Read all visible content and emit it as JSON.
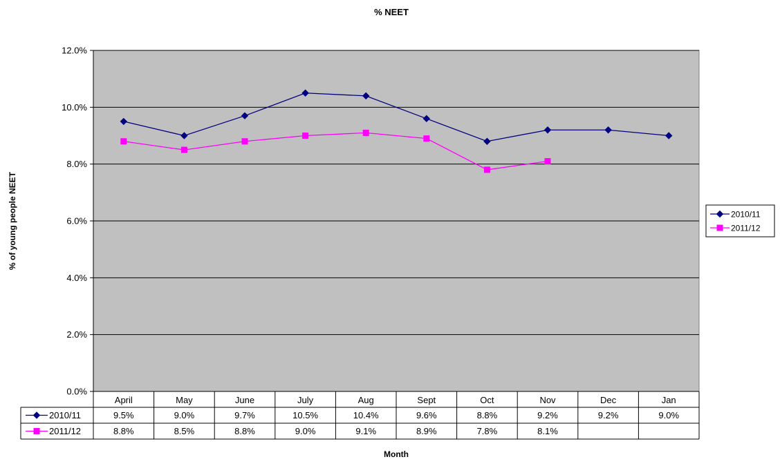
{
  "chart_data": {
    "type": "line",
    "title": "% NEET",
    "xlabel": "Month",
    "ylabel": "% of young people NEET",
    "categories": [
      "April",
      "May",
      "June",
      "July",
      "Aug",
      "Sept",
      "Oct",
      "Nov",
      "Dec",
      "Jan"
    ],
    "series": [
      {
        "name": "2010/11",
        "color": "#000080",
        "marker": "diamond",
        "values": [
          9.5,
          9.0,
          9.7,
          10.5,
          10.4,
          9.6,
          8.8,
          9.2,
          9.2,
          9.0
        ],
        "labels": [
          "9.5%",
          "9.0%",
          "9.7%",
          "10.5%",
          "10.4%",
          "9.6%",
          "8.8%",
          "9.2%",
          "9.2%",
          "9.0%"
        ]
      },
      {
        "name": "2011/12",
        "color": "#FF00FF",
        "marker": "square",
        "values": [
          8.8,
          8.5,
          8.8,
          9.0,
          9.1,
          8.9,
          7.8,
          8.1,
          null,
          null
        ],
        "labels": [
          "8.8%",
          "8.5%",
          "8.8%",
          "9.0%",
          "9.1%",
          "8.9%",
          "7.8%",
          "8.1%",
          "",
          ""
        ]
      }
    ],
    "ylim": [
      0,
      12
    ],
    "yticks": [
      0,
      2,
      4,
      6,
      8,
      10,
      12
    ],
    "ytick_labels": [
      "0.0%",
      "2.0%",
      "4.0%",
      "6.0%",
      "8.0%",
      "10.0%",
      "12.0%"
    ],
    "grid": true,
    "plot_background": "#C0C0C0",
    "legend_position": "right",
    "data_table": true
  }
}
